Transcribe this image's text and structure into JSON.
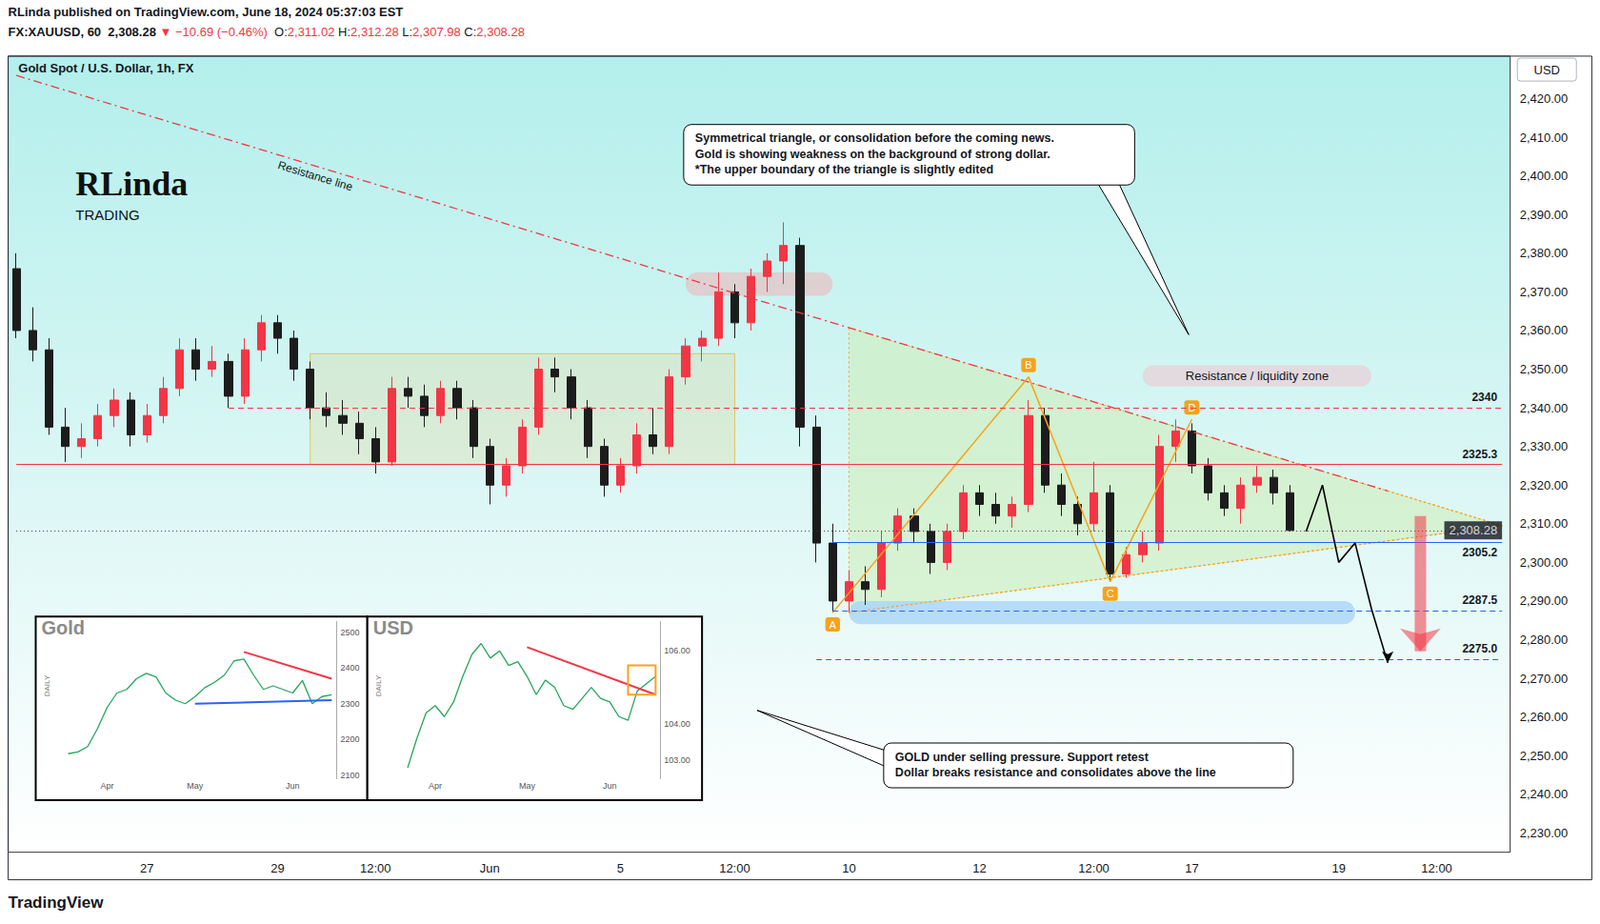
{
  "page": {
    "header": "RLinda published on TradingView.com, June 18, 2024 05:37:03 EST",
    "symbol": "FX:XAUUSD, 60",
    "price": "2,308.28",
    "change": "▼ −10.69 (−0.46%)",
    "ohlc": [
      [
        "O:",
        "2,311.02"
      ],
      [
        "H:",
        "2,312.28"
      ],
      [
        "L:",
        "2,307.98"
      ],
      [
        "C:",
        "2,308.28"
      ]
    ],
    "logo": [
      "RLinda",
      "TRADING"
    ],
    "footer": "TradingView"
  },
  "chart_data": [
    {
      "type": "candlestick",
      "title": "Gold Spot / U.S. Dollar, 1h, FX",
      "y_unit": "USD",
      "grid": false,
      "categories": [
        null,
        null,
        null,
        null,
        null,
        null,
        null,
        null,
        "27",
        null,
        null,
        null,
        null,
        null,
        null,
        null,
        "29",
        null,
        null,
        null,
        null,
        null,
        "12:00",
        null,
        null,
        null,
        null,
        null,
        null,
        "Jun",
        null,
        null,
        null,
        null,
        null,
        null,
        null,
        "5",
        null,
        null,
        null,
        null,
        null,
        null,
        "12:00",
        null,
        null,
        null,
        null,
        null,
        null,
        "10",
        null,
        null,
        null,
        null,
        null,
        null,
        null,
        "12",
        null,
        null,
        null,
        null,
        null,
        null,
        "12:00",
        null,
        null,
        null,
        null,
        null,
        "17",
        null,
        null,
        null,
        null,
        null,
        null,
        null,
        null,
        "19",
        null,
        null,
        null,
        null,
        null,
        "12:00",
        null,
        null,
        null,
        null
      ],
      "values": [
        [
          2376,
          2380,
          2358,
          2360
        ],
        [
          2360,
          2366,
          2352,
          2355
        ],
        [
          2355,
          2358,
          2333,
          2335
        ],
        [
          2335,
          2340,
          2326,
          2330
        ],
        [
          2330,
          2336,
          2327,
          2332
        ],
        [
          2332,
          2341,
          2330,
          2338
        ],
        [
          2338,
          2345,
          2335,
          2342
        ],
        [
          2342,
          2344,
          2330,
          2333
        ],
        [
          2333,
          2341,
          2331,
          2338
        ],
        [
          2338,
          2348,
          2336,
          2345
        ],
        [
          2345,
          2358,
          2343,
          2355
        ],
        [
          2355,
          2358,
          2347,
          2350
        ],
        [
          2350,
          2356,
          2348,
          2352
        ],
        [
          2352,
          2354,
          2340,
          2343
        ],
        [
          2343,
          2358,
          2341,
          2355
        ],
        [
          2355,
          2364,
          2352,
          2362
        ],
        [
          2362,
          2364,
          2354,
          2358
        ],
        [
          2358,
          2360,
          2347,
          2350
        ],
        [
          2350,
          2352,
          2337,
          2340
        ],
        [
          2340,
          2344,
          2335,
          2338
        ],
        [
          2338,
          2342,
          2333,
          2336
        ],
        [
          2336,
          2339,
          2328,
          2332
        ],
        [
          2332,
          2335,
          2323,
          2326
        ],
        [
          2326,
          2348,
          2325,
          2345
        ],
        [
          2345,
          2348,
          2340,
          2343
        ],
        [
          2343,
          2346,
          2335,
          2338
        ],
        [
          2338,
          2347,
          2336,
          2345
        ],
        [
          2345,
          2347,
          2337,
          2340
        ],
        [
          2340,
          2342,
          2327,
          2330
        ],
        [
          2330,
          2332,
          2315,
          2320
        ],
        [
          2320,
          2327,
          2317,
          2325
        ],
        [
          2325,
          2337,
          2323,
          2335
        ],
        [
          2335,
          2353,
          2333,
          2350
        ],
        [
          2350,
          2353,
          2344,
          2348
        ],
        [
          2348,
          2350,
          2337,
          2340
        ],
        [
          2340,
          2342,
          2327,
          2330
        ],
        [
          2330,
          2332,
          2317,
          2320
        ],
        [
          2320,
          2327,
          2318,
          2325
        ],
        [
          2325,
          2336,
          2323,
          2333
        ],
        [
          2333,
          2340,
          2328,
          2330
        ],
        [
          2330,
          2350,
          2328,
          2348
        ],
        [
          2348,
          2358,
          2346,
          2356
        ],
        [
          2356,
          2360,
          2352,
          2358
        ],
        [
          2358,
          2375,
          2356,
          2370
        ],
        [
          2370,
          2372,
          2358,
          2362
        ],
        [
          2362,
          2376,
          2360,
          2374
        ],
        [
          2374,
          2380,
          2370,
          2378
        ],
        [
          2378,
          2388,
          2372,
          2382
        ],
        [
          2382,
          2384,
          2330,
          2335
        ],
        [
          2335,
          2338,
          2300,
          2305
        ],
        [
          2305,
          2310,
          2287,
          2290
        ],
        [
          2290,
          2298,
          2287,
          2295
        ],
        [
          2295,
          2299,
          2289,
          2293
        ],
        [
          2293,
          2308,
          2291,
          2305
        ],
        [
          2305,
          2314,
          2303,
          2312
        ],
        [
          2312,
          2314,
          2305,
          2308
        ],
        [
          2308,
          2310,
          2297,
          2300
        ],
        [
          2300,
          2310,
          2298,
          2308
        ],
        [
          2308,
          2320,
          2306,
          2318
        ],
        [
          2318,
          2320,
          2312,
          2315
        ],
        [
          2315,
          2318,
          2310,
          2312
        ],
        [
          2312,
          2317,
          2309,
          2315
        ],
        [
          2315,
          2342,
          2313,
          2338
        ],
        [
          2338,
          2340,
          2318,
          2320
        ],
        [
          2320,
          2323,
          2312,
          2315
        ],
        [
          2315,
          2317,
          2307,
          2310
        ],
        [
          2310,
          2326,
          2308,
          2318
        ],
        [
          2318,
          2320,
          2295,
          2297
        ],
        [
          2297,
          2304,
          2296,
          2302
        ],
        [
          2302,
          2308,
          2300,
          2305
        ],
        [
          2305,
          2333,
          2303,
          2330
        ],
        [
          2330,
          2337,
          2326,
          2334
        ],
        [
          2334,
          2336,
          2323,
          2325
        ],
        [
          2325,
          2327,
          2316,
          2318
        ],
        [
          2318,
          2320,
          2312,
          2314
        ],
        [
          2314,
          2322,
          2310,
          2320
        ],
        [
          2320,
          2325,
          2318,
          2322
        ],
        [
          2322,
          2324,
          2315,
          2318
        ],
        [
          2318,
          2320,
          2307.98,
          2308.28
        ]
      ],
      "ylim": [
        2225,
        2431
      ],
      "yticks": [
        {
          "value": 2230,
          "label": "2,230.00"
        },
        {
          "value": 2240,
          "label": "2,240.00"
        },
        {
          "value": 2250,
          "label": "2,250.00"
        },
        {
          "value": 2260,
          "label": "2,260.00"
        },
        {
          "value": 2270,
          "label": "2,270.00"
        },
        {
          "value": 2280,
          "label": "2,280.00"
        },
        {
          "value": 2290,
          "label": "2,290.00"
        },
        {
          "value": 2300,
          "label": "2,300.00"
        },
        {
          "value": 2310,
          "label": "2,310.00"
        },
        {
          "value": 2320,
          "label": "2,320.00"
        },
        {
          "value": 2330,
          "label": "2,330.00"
        },
        {
          "value": 2340,
          "label": "2,340.00"
        },
        {
          "value": 2350,
          "label": "2,350.00"
        },
        {
          "value": 2360,
          "label": "2,360.00"
        },
        {
          "value": 2370,
          "label": "2,370.00"
        },
        {
          "value": 2380,
          "label": "2,380.00"
        },
        {
          "value": 2390,
          "label": "2,390.00"
        },
        {
          "value": 2400,
          "label": "2,400.00"
        },
        {
          "value": 2410,
          "label": "2,410.00"
        },
        {
          "value": 2420,
          "label": "2,420.00"
        }
      ],
      "last_price": {
        "value": 2308.28,
        "label": "2,308.28"
      },
      "levels": [
        {
          "value": 2340,
          "label": "2340",
          "color": "#f23645",
          "line_style": "dashed",
          "from_index": 13
        },
        {
          "value": 2325.3,
          "label": "2325.3",
          "color": "#f23645",
          "line_style": "solid",
          "from_index": 0
        },
        {
          "value": 2305.2,
          "label": "2305.2",
          "color": "#2962ff",
          "line_style": "solid",
          "from_index": 50
        },
        {
          "value": 2287.5,
          "label": "2287.5",
          "color": "#2962ff",
          "line_style": "dashed",
          "from_index": 50
        },
        {
          "value": 2275.0,
          "label": "2275.0",
          "color": "#2962ff",
          "line_style": "dashed",
          "from_index": 49
        }
      ],
      "lines": [
        {
          "name": "Resistance line",
          "x_index": [
            0,
            84
          ],
          "values": [
            2426,
            2318.5
          ],
          "color": "#f23645",
          "line_style": "dashdot"
        },
        {
          "x_index": [
            84,
            91
          ],
          "values": [
            2318.5,
            2309.5
          ],
          "color": "#f7a21b",
          "line_style": "dotted"
        },
        {
          "x_index": [
            51,
            91
          ],
          "values": [
            2287,
            2309.5
          ],
          "color": "#f7a21b",
          "line_style": "dotted"
        }
      ],
      "triangle": {
        "x_index": [
          51,
          91,
          51
        ],
        "values": [
          2360.7,
          2309.5,
          2287
        ],
        "color": "#cfeebb",
        "line_style": "dotted"
      },
      "zones": [
        {
          "x_index": [
            18,
            44
          ],
          "values": [
            2325.3,
            2354
          ],
          "color": "#e2c35a",
          "line_style": "solid"
        },
        {
          "x_index": [
            41,
            50
          ],
          "values": [
            2369,
            2375
          ],
          "color": "#e3c6c8"
        },
        {
          "x_index": [
            69,
            83
          ],
          "values": [
            2345.5,
            2351
          ],
          "color": "#e6d3d8",
          "label": "Resistance / liquidity zone"
        },
        {
          "x_index": [
            51,
            82
          ],
          "values": [
            2284,
            2290
          ],
          "color": "#a9d4f7"
        }
      ],
      "pattern": {
        "labels": [
          "A",
          "B",
          "C",
          "D"
        ],
        "x_index": [
          50,
          62,
          67,
          72
        ],
        "values": [
          2287,
          2348,
          2295,
          2337
        ],
        "color": "#f7a21b"
      },
      "projection": {
        "x_index": [
          79,
          80,
          81,
          82,
          83,
          84
        ],
        "values": [
          2308,
          2320,
          2300,
          2305,
          2288,
          2274
        ],
        "color": "#000000"
      },
      "target_arrow": {
        "x_index": [
          86,
          86
        ],
        "values": [
          2312,
          2277
        ],
        "color": "#f23645"
      },
      "annotations": [
        {
          "lines": [
            "Symmetrical triangle, or consolidation before the coming news.",
            "Gold is showing weakness on the background of strong dollar.",
            "*The upper boundary of the triangle is slightly edited"
          ]
        },
        {
          "lines": [
            "GOLD under selling pressure. Support retest",
            "Dollar breaks resistance and consolidates above the line"
          ]
        }
      ]
    },
    {
      "type": "line",
      "title": "Gold",
      "period_label": "DAILY",
      "grid": false,
      "color": "#26a65b",
      "categories": [
        null,
        null,
        null,
        null,
        "Apr",
        null,
        null,
        null,
        null,
        null,
        null,
        null,
        null,
        "May",
        null,
        null,
        null,
        null,
        null,
        null,
        null,
        null,
        null,
        "Jun",
        null,
        null,
        null,
        null
      ],
      "values": [
        2160,
        2165,
        2180,
        2230,
        2290,
        2330,
        2340,
        2370,
        2385,
        2375,
        2330,
        2310,
        2300,
        2320,
        2345,
        2360,
        2380,
        2420,
        2425,
        2380,
        2340,
        2350,
        2340,
        2330,
        2365,
        2300,
        2320,
        2325
      ],
      "ylim": [
        2090,
        2530
      ],
      "yticks": [
        2100,
        2200,
        2300,
        2400,
        2500
      ],
      "lines": [
        {
          "x_index": [
            18,
            27
          ],
          "values": [
            2445,
            2370
          ],
          "color": "#f23645",
          "line_style": "solid"
        },
        {
          "x_index": [
            13,
            27
          ],
          "values": [
            2300,
            2310
          ],
          "color": "#2962ff",
          "line_style": "solid"
        }
      ]
    },
    {
      "type": "line",
      "title": "USD",
      "period_label": "DAILY",
      "grid": false,
      "color": "#26a65b",
      "categories": [
        null,
        null,
        null,
        "Apr",
        null,
        null,
        null,
        null,
        null,
        null,
        null,
        null,
        null,
        "May",
        null,
        null,
        null,
        null,
        null,
        null,
        null,
        null,
        "Jun",
        null,
        null,
        null,
        null,
        null
      ],
      "values": [
        102.8,
        103.6,
        104.3,
        104.5,
        104.2,
        104.6,
        105.3,
        105.9,
        106.2,
        105.8,
        106.0,
        105.6,
        105.7,
        105.3,
        104.8,
        105.2,
        105.0,
        104.5,
        104.4,
        104.7,
        105.0,
        104.7,
        104.6,
        104.2,
        104.1,
        104.9,
        105.1,
        105.3
      ],
      "ylim": [
        102.5,
        106.8
      ],
      "yticks": [
        {
          "value": 103,
          "label": "103.00"
        },
        {
          "value": 104,
          "label": "104.00"
        },
        {
          "value": 106,
          "label": "106.00"
        }
      ],
      "lines": [
        {
          "x_index": [
            13,
            27
          ],
          "values": [
            106.1,
            104.8
          ],
          "color": "#f23645",
          "line_style": "solid"
        }
      ],
      "zones": [
        {
          "x_index": [
            24,
            27
          ],
          "values": [
            104.8,
            105.6
          ],
          "color": "#f7a21b",
          "line_style": "solid"
        }
      ]
    }
  ]
}
